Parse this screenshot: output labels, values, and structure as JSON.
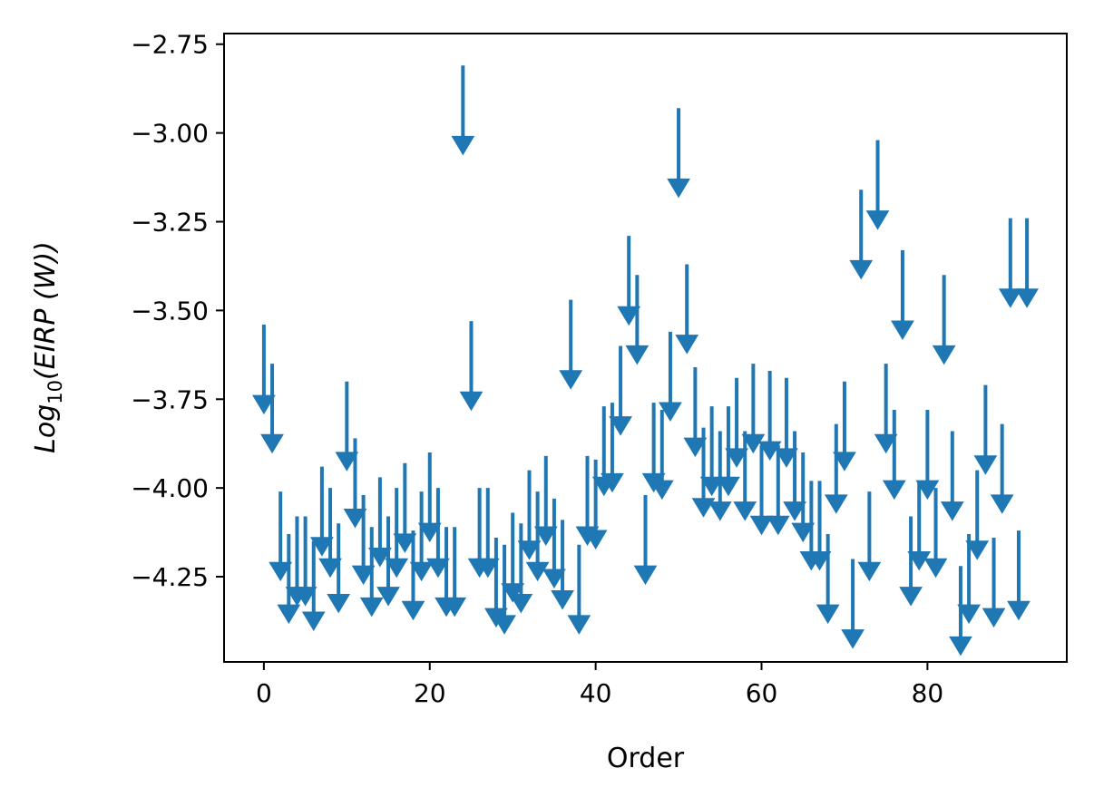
{
  "chart_data": {
    "type": "scatter",
    "marker": "down-arrow upper limits",
    "xlabel": "Order",
    "ylabel": {
      "prefix": "Log",
      "subscript": "10",
      "suffix": "(EIRP (W))"
    },
    "xlim": [
      -4.8,
      96.8
    ],
    "ylim": [
      -4.49,
      -2.72
    ],
    "xticks": [
      {
        "value": 0,
        "label": "0"
      },
      {
        "value": 20,
        "label": "20"
      },
      {
        "value": 40,
        "label": "40"
      },
      {
        "value": 60,
        "label": "60"
      },
      {
        "value": 80,
        "label": "80"
      }
    ],
    "yticks": [
      {
        "value": -2.75,
        "label": "−2.75"
      },
      {
        "value": -3.0,
        "label": "−3.00"
      },
      {
        "value": -3.25,
        "label": "−3.25"
      },
      {
        "value": -3.5,
        "label": "−3.50"
      },
      {
        "value": -3.75,
        "label": "−3.75"
      },
      {
        "value": -4.0,
        "label": "−4.00"
      },
      {
        "value": -4.25,
        "label": "−4.25"
      }
    ],
    "arrow_length": 0.22,
    "color": "#1f77b4",
    "x": [
      0,
      1,
      2,
      3,
      4,
      5,
      6,
      7,
      8,
      9,
      10,
      11,
      12,
      13,
      14,
      15,
      16,
      17,
      18,
      19,
      20,
      21,
      22,
      23,
      24,
      25,
      26,
      27,
      28,
      29,
      30,
      31,
      32,
      33,
      34,
      35,
      36,
      37,
      38,
      39,
      40,
      41,
      42,
      43,
      44,
      45,
      46,
      47,
      48,
      49,
      50,
      51,
      52,
      53,
      54,
      55,
      56,
      57,
      58,
      59,
      60,
      61,
      62,
      63,
      64,
      65,
      66,
      67,
      68,
      69,
      70,
      71,
      72,
      73,
      74,
      75,
      76,
      77,
      78,
      79,
      80,
      81,
      82,
      83,
      84,
      85,
      86,
      87,
      88,
      89,
      90,
      91,
      92
    ],
    "y": [
      -3.76,
      -3.87,
      -4.23,
      -4.35,
      -4.3,
      -4.3,
      -4.37,
      -4.16,
      -4.22,
      -4.32,
      -3.92,
      -4.08,
      -4.24,
      -4.33,
      -4.19,
      -4.3,
      -4.22,
      -4.15,
      -4.34,
      -4.23,
      -4.12,
      -4.22,
      -4.33,
      -4.33,
      -3.03,
      -3.75,
      -4.22,
      -4.22,
      -4.36,
      -4.38,
      -4.29,
      -4.32,
      -4.17,
      -4.23,
      -4.13,
      -4.25,
      -4.31,
      -3.69,
      -4.38,
      -4.13,
      -4.14,
      -3.99,
      -3.98,
      -3.82,
      -3.51,
      -3.62,
      -4.24,
      -3.98,
      -4.0,
      -3.78,
      -3.15,
      -3.59,
      -3.88,
      -4.05,
      -3.99,
      -4.06,
      -3.99,
      -3.91,
      -4.06,
      -3.87,
      -4.1,
      -3.89,
      -4.1,
      -3.91,
      -4.06,
      -4.12,
      -4.2,
      -4.2,
      -4.35,
      -4.04,
      -3.92,
      -4.42,
      -3.38,
      -4.23,
      -3.24,
      -3.87,
      -4.0,
      -3.55,
      -4.3,
      -4.2,
      -4.0,
      -4.22,
      -3.62,
      -4.06,
      -4.44,
      -4.35,
      -4.17,
      -3.93,
      -4.36,
      -4.04,
      -3.46,
      -4.34,
      -3.46
    ]
  }
}
